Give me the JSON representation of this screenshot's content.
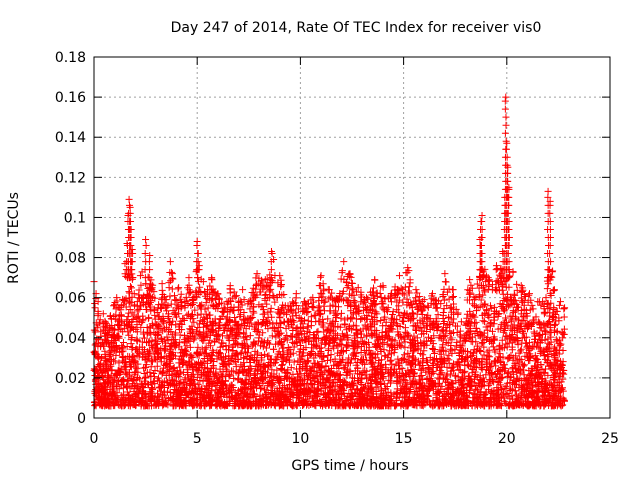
{
  "chart_data": {
    "type": "scatter",
    "title": "Day 247 of 2014, Rate Of TEC Index for receiver vis0",
    "xlabel": "GPS time / hours",
    "ylabel": "ROTI / TECUs",
    "xlim": [
      0,
      25
    ],
    "ylim": [
      0,
      0.18
    ],
    "xticks": [
      0,
      5,
      10,
      15,
      20,
      25
    ],
    "xtick_labels": [
      "0",
      "5",
      "10",
      "15",
      "20",
      "25"
    ],
    "yticks": [
      0,
      0.02,
      0.04,
      0.06,
      0.08,
      0.1,
      0.12,
      0.14,
      0.16,
      0.18
    ],
    "ytick_labels": [
      "0",
      "0.02",
      "0.04",
      "0.06",
      "0.08",
      "0.1",
      "0.12",
      "0.14",
      "0.16",
      "0.18"
    ],
    "grid": true,
    "marker": "plus",
    "color": "#ff0000",
    "series": [
      {
        "name": "ROTI",
        "x": [
          0.0,
          0.05,
          0.1,
          0.15,
          0.2,
          0.3,
          0.45,
          0.6,
          0.8,
          0.95,
          1.1,
          1.3,
          1.5,
          1.6,
          1.65,
          1.7,
          1.75,
          1.8,
          1.85,
          1.95,
          2.1,
          2.25,
          2.5,
          2.7,
          2.9,
          3.1,
          3.3,
          3.5,
          3.7,
          3.8,
          3.9,
          4.1,
          4.4,
          4.6,
          4.8,
          4.95,
          5.0,
          5.05,
          5.1,
          5.3,
          5.5,
          5.7,
          6.0,
          6.3,
          6.6,
          6.9,
          7.2,
          7.5,
          7.9,
          8.3,
          8.6,
          8.7,
          9.0,
          9.4,
          9.8,
          10.2,
          10.6,
          11.0,
          11.4,
          11.8,
          12.1,
          12.4,
          12.8,
          13.2,
          13.6,
          14.0,
          14.4,
          14.8,
          15.2,
          15.6,
          16.0,
          16.4,
          16.8,
          17.0,
          17.4,
          17.8,
          18.2,
          18.5,
          18.7,
          18.75,
          18.8,
          19.1,
          19.5,
          19.8,
          19.9,
          19.95,
          20.0,
          20.05,
          20.1,
          20.3,
          20.7,
          21.1,
          21.5,
          21.9,
          22.0,
          22.1,
          22.3,
          22.6,
          22.8
        ],
        "y": [
          0.068,
          0.055,
          0.062,
          0.045,
          0.058,
          0.049,
          0.052,
          0.047,
          0.051,
          0.056,
          0.06,
          0.054,
          0.077,
          0.087,
          0.101,
          0.109,
          0.105,
          0.094,
          0.084,
          0.062,
          0.058,
          0.071,
          0.089,
          0.081,
          0.063,
          0.055,
          0.067,
          0.059,
          0.078,
          0.072,
          0.061,
          0.065,
          0.058,
          0.07,
          0.06,
          0.073,
          0.088,
          0.082,
          0.076,
          0.068,
          0.064,
          0.07,
          0.062,
          0.055,
          0.066,
          0.061,
          0.064,
          0.058,
          0.072,
          0.069,
          0.083,
          0.079,
          0.071,
          0.056,
          0.062,
          0.058,
          0.06,
          0.071,
          0.064,
          0.059,
          0.078,
          0.072,
          0.065,
          0.06,
          0.069,
          0.066,
          0.062,
          0.071,
          0.075,
          0.064,
          0.059,
          0.062,
          0.057,
          0.072,
          0.064,
          0.048,
          0.069,
          0.06,
          0.089,
          0.098,
          0.101,
          0.07,
          0.076,
          0.083,
          0.11,
          0.16,
          0.137,
          0.125,
          0.115,
          0.073,
          0.066,
          0.062,
          0.058,
          0.06,
          0.113,
          0.108,
          0.064,
          0.058,
          0.055
        ]
      }
    ]
  }
}
